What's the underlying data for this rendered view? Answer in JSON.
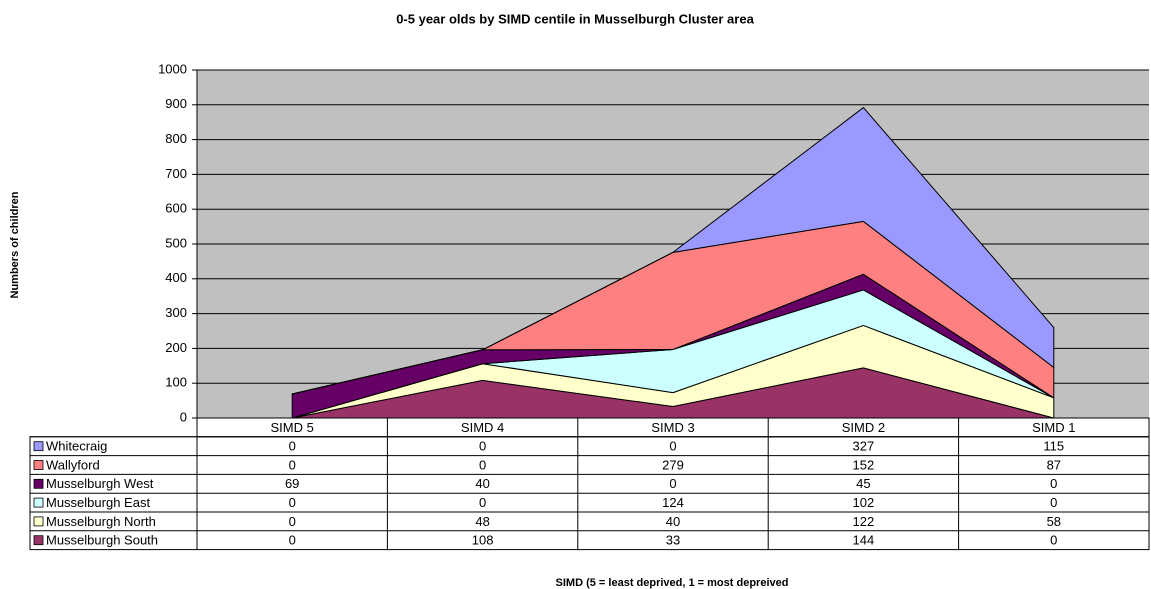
{
  "chart_data": {
    "type": "stacked-area",
    "title": "0-5 year olds by SIMD centile in Musselburgh Cluster area",
    "y_label": "Numbers of children",
    "x_label": "SIMD (5 = least deprived, 1 = most depreived",
    "categories": [
      "SIMD 5",
      "SIMD 4",
      "SIMD 3",
      "SIMD 2",
      "SIMD 1"
    ],
    "series": [
      {
        "name": "Whitecraig",
        "color": "#9999ff",
        "values": [
          0,
          0,
          0,
          327,
          115
        ]
      },
      {
        "name": "Wallyford",
        "color": "#ff8080",
        "values": [
          0,
          0,
          279,
          152,
          87
        ]
      },
      {
        "name": "Musselburgh West",
        "color": "#660066",
        "values": [
          69,
          40,
          0,
          45,
          0
        ]
      },
      {
        "name": "Musselburgh East",
        "color": "#ccffff",
        "values": [
          0,
          0,
          124,
          102,
          0
        ]
      },
      {
        "name": "Musselburgh North",
        "color": "#ffffcc",
        "values": [
          0,
          48,
          40,
          122,
          58
        ]
      },
      {
        "name": "Musselburgh South",
        "color": "#993366",
        "values": [
          0,
          108,
          33,
          144,
          0
        ]
      }
    ],
    "ylim": [
      0,
      1000
    ],
    "yticks": [
      0,
      100,
      200,
      300,
      400,
      500,
      600,
      700,
      800,
      900,
      1000
    ],
    "grid": true
  }
}
